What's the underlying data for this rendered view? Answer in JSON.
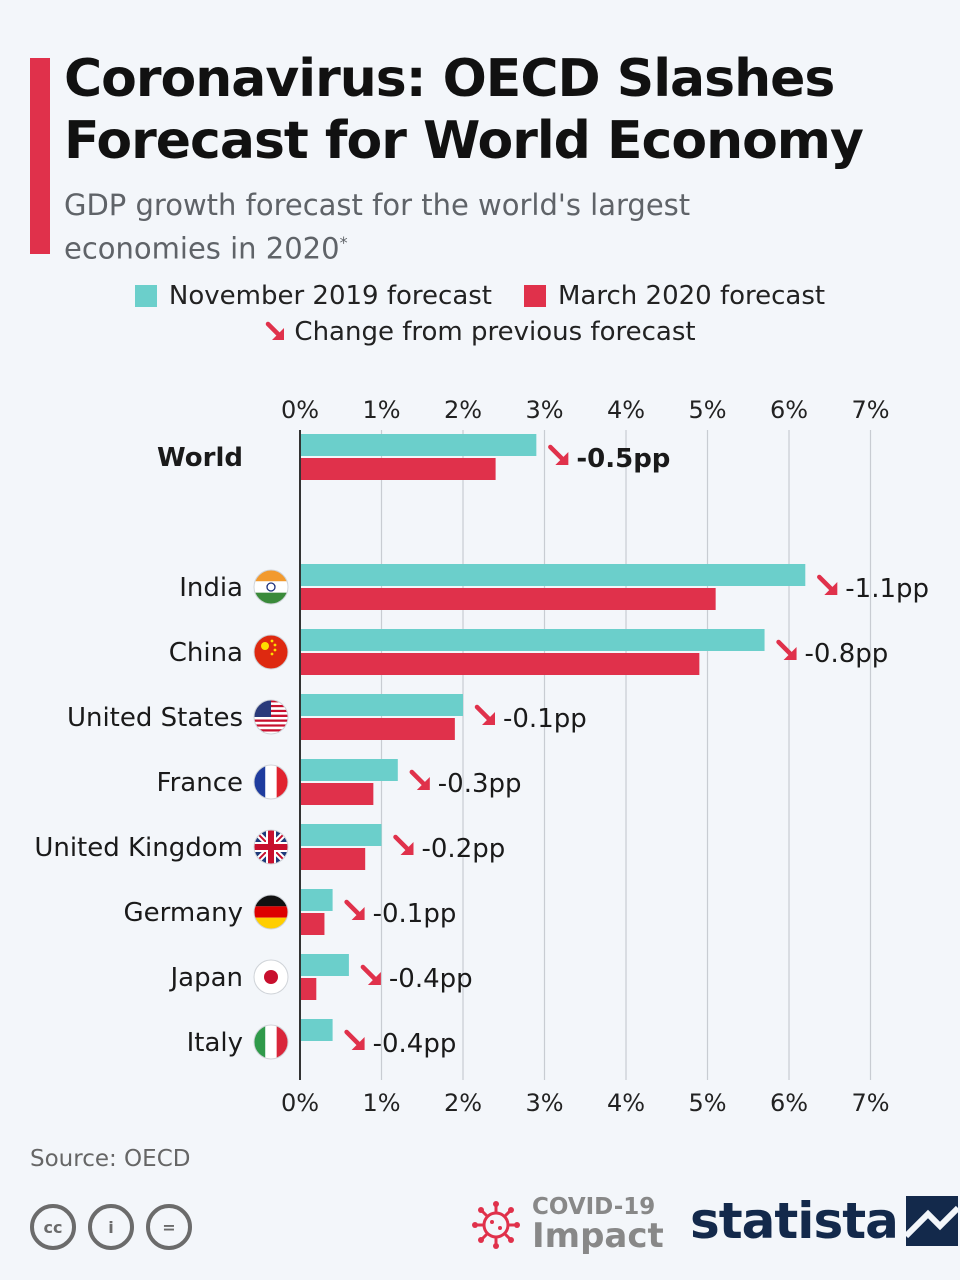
{
  "header": {
    "title": "Coronavirus: OECD Slashes Forecast for World Economy",
    "subtitle": "GDP growth forecast for the world's largest economies in 2020",
    "subtitle_mark": "*"
  },
  "legend": {
    "nov_label": "November 2019 forecast",
    "mar_label": "March 2020 forecast",
    "change_label": "Change from previous forecast"
  },
  "colors": {
    "nov": "#6bcfcb",
    "mar": "#e0314b",
    "accent": "#e0314b",
    "grid": "#c8ccd2",
    "axis": "#333333",
    "brand": "#13294b"
  },
  "chart_data": {
    "type": "bar",
    "orientation": "horizontal",
    "categories": [
      "World",
      "India",
      "China",
      "United States",
      "France",
      "United Kingdom",
      "Germany",
      "Japan",
      "Italy"
    ],
    "series": [
      {
        "name": "November 2019 forecast",
        "values": [
          2.9,
          6.2,
          5.7,
          2.0,
          1.2,
          1.0,
          0.4,
          0.6,
          0.4
        ]
      },
      {
        "name": "March 2020 forecast",
        "values": [
          2.4,
          5.1,
          4.9,
          1.9,
          0.9,
          0.8,
          0.3,
          0.2,
          0.0
        ]
      }
    ],
    "change_labels": [
      "-0.5pp",
      "-1.1pp",
      "-0.8pp",
      "-0.1pp",
      "-0.3pp",
      "-0.2pp",
      "-0.1pp",
      "-0.4pp",
      "-0.4pp"
    ],
    "flags": [
      "",
      "india-flag-icon",
      "china-flag-icon",
      "usa-flag-icon",
      "france-flag-icon",
      "uk-flag-icon",
      "germany-flag-icon",
      "japan-flag-icon",
      "italy-flag-icon"
    ],
    "xlim": [
      0,
      7
    ],
    "ticks": [
      "0%",
      "1%",
      "2%",
      "3%",
      "4%",
      "5%",
      "6%",
      "7%"
    ],
    "grid": true,
    "legend_position": "top"
  },
  "footer": {
    "source": "Source: OECD",
    "covid_line1": "COVID-19",
    "covid_line2": "Impact",
    "brand": "statista",
    "cc_labels": [
      "cc",
      "i",
      "="
    ]
  }
}
